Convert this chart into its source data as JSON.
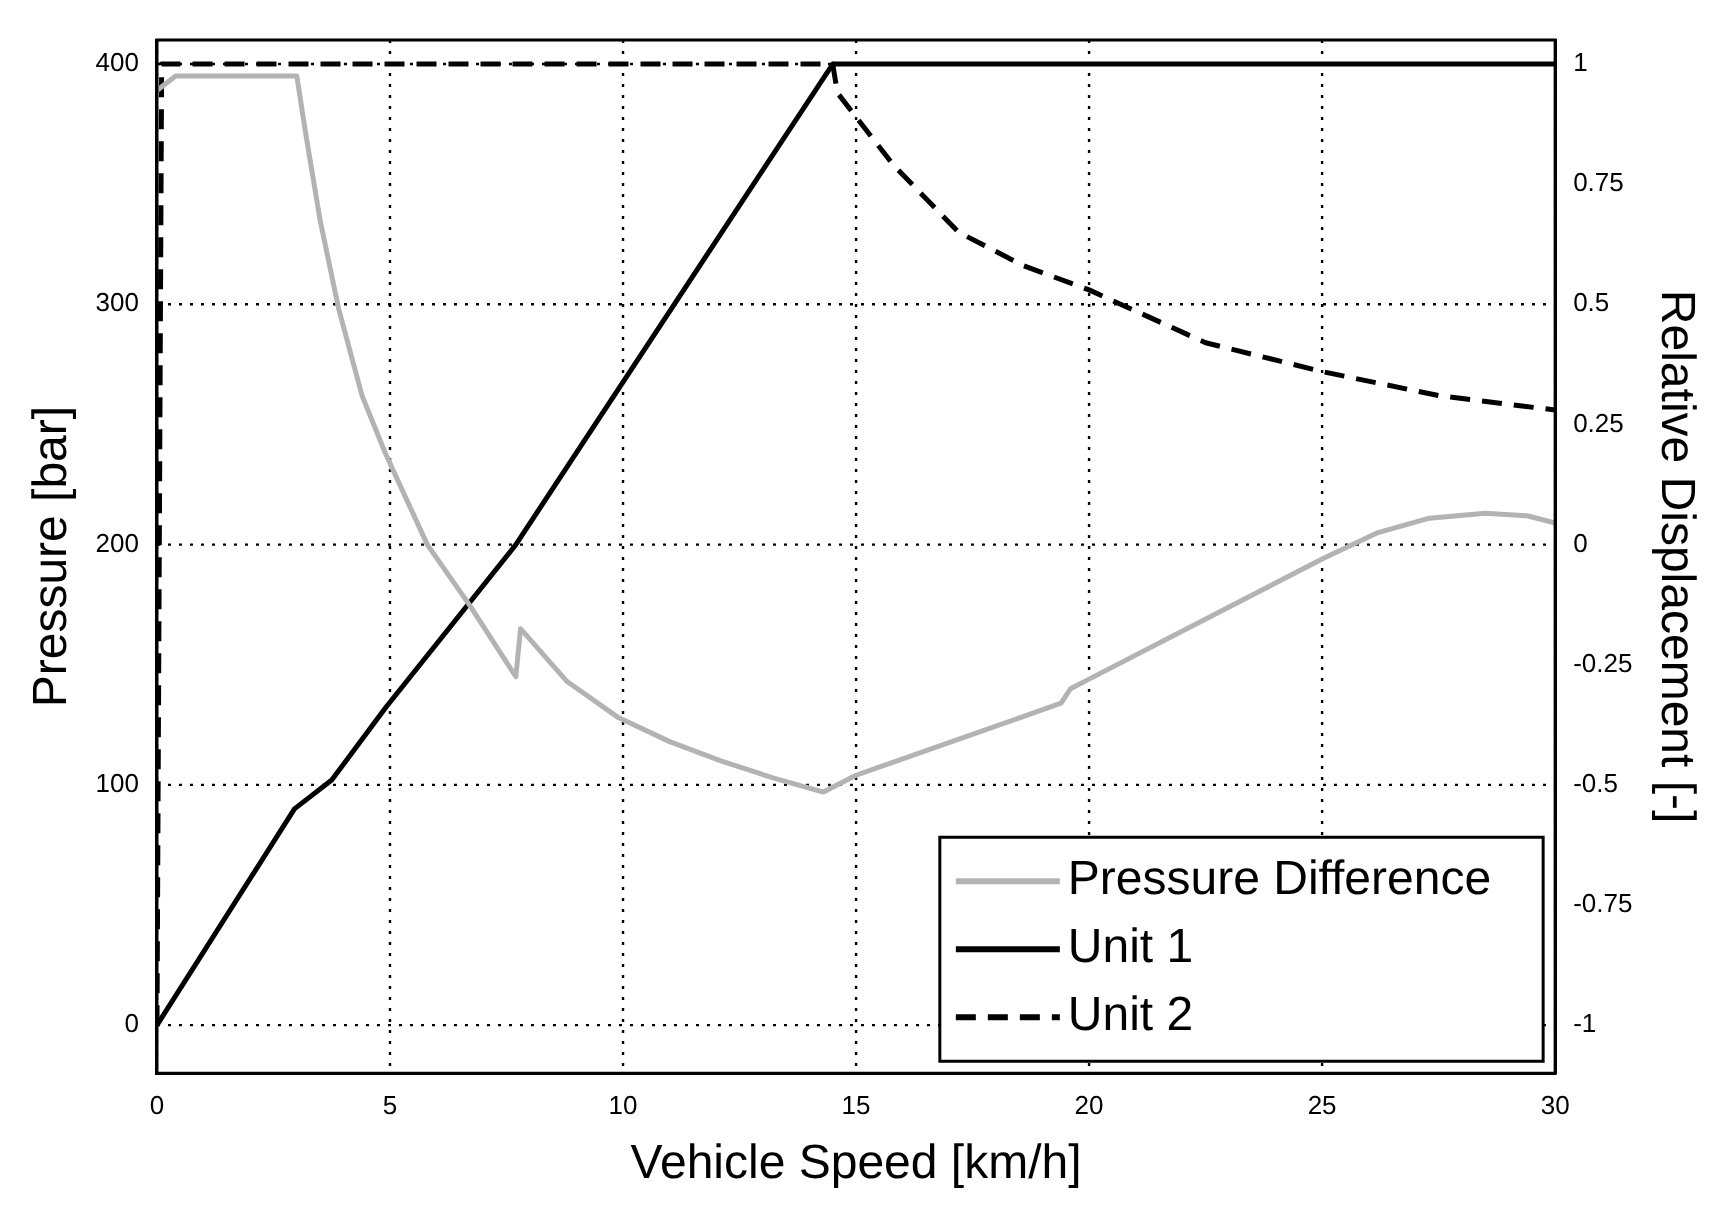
{
  "chart_data": {
    "type": "line",
    "xlabel": "Vehicle Speed [km/h]",
    "ylabel": "Pressure [bar]",
    "y2label": "Relative Displacement [-]",
    "xlim": [
      0,
      30
    ],
    "xticks": [
      0,
      5,
      10,
      15,
      20,
      25,
      30
    ],
    "ylim": [
      -20,
      410
    ],
    "yticks": [
      0,
      100,
      200,
      300,
      400
    ],
    "y2lim": [
      -1.1,
      1.05
    ],
    "y2ticks": [
      -1,
      -0.75,
      -0.5,
      -0.25,
      0,
      0.25,
      0.5,
      0.75,
      1
    ],
    "grid": true,
    "legend": "bottom right",
    "marker": "none",
    "series": [
      {
        "name": "Pressure Difference",
        "color": "#b3b3b3",
        "line_style": "solid",
        "x": [
          0,
          0.4,
          3.0,
          3.2,
          3.5,
          3.9,
          4.4,
          4.9,
          5.8,
          6.7,
          7.7,
          7.8,
          8.8,
          9.9,
          11,
          12.1,
          13.2,
          14.3,
          15,
          19.4,
          19.6,
          20,
          25,
          26.2,
          27.3,
          28.5,
          29.4,
          30
        ],
        "values": [
          389,
          395,
          395,
          370,
          335,
          298,
          262,
          238,
          200,
          175,
          145,
          165,
          143,
          128,
          118,
          110,
          103,
          97,
          104,
          134,
          140,
          144,
          194,
          205,
          211,
          213,
          212,
          209
        ]
      },
      {
        "name": "Unit 1",
        "color": "#000000",
        "line_style": "solid",
        "axis": "y2",
        "x": [
          0,
          2.95,
          3.75,
          4.9,
          7.7,
          14.5,
          30
        ],
        "values": [
          -1,
          -0.55,
          -0.49,
          -0.34,
          0,
          1,
          1
        ]
      },
      {
        "name": "Unit 2",
        "color": "#000000",
        "line_style": "dashed",
        "axis": "y2",
        "x": [
          0,
          0.1,
          14.5,
          14.6,
          15.8,
          17.2,
          18.6,
          20,
          22.5,
          25,
          27.5,
          30
        ],
        "values": [
          -1,
          1,
          1,
          0.94,
          0.79,
          0.65,
          0.58,
          0.53,
          0.42,
          0.36,
          0.31,
          0.28
        ]
      }
    ]
  }
}
